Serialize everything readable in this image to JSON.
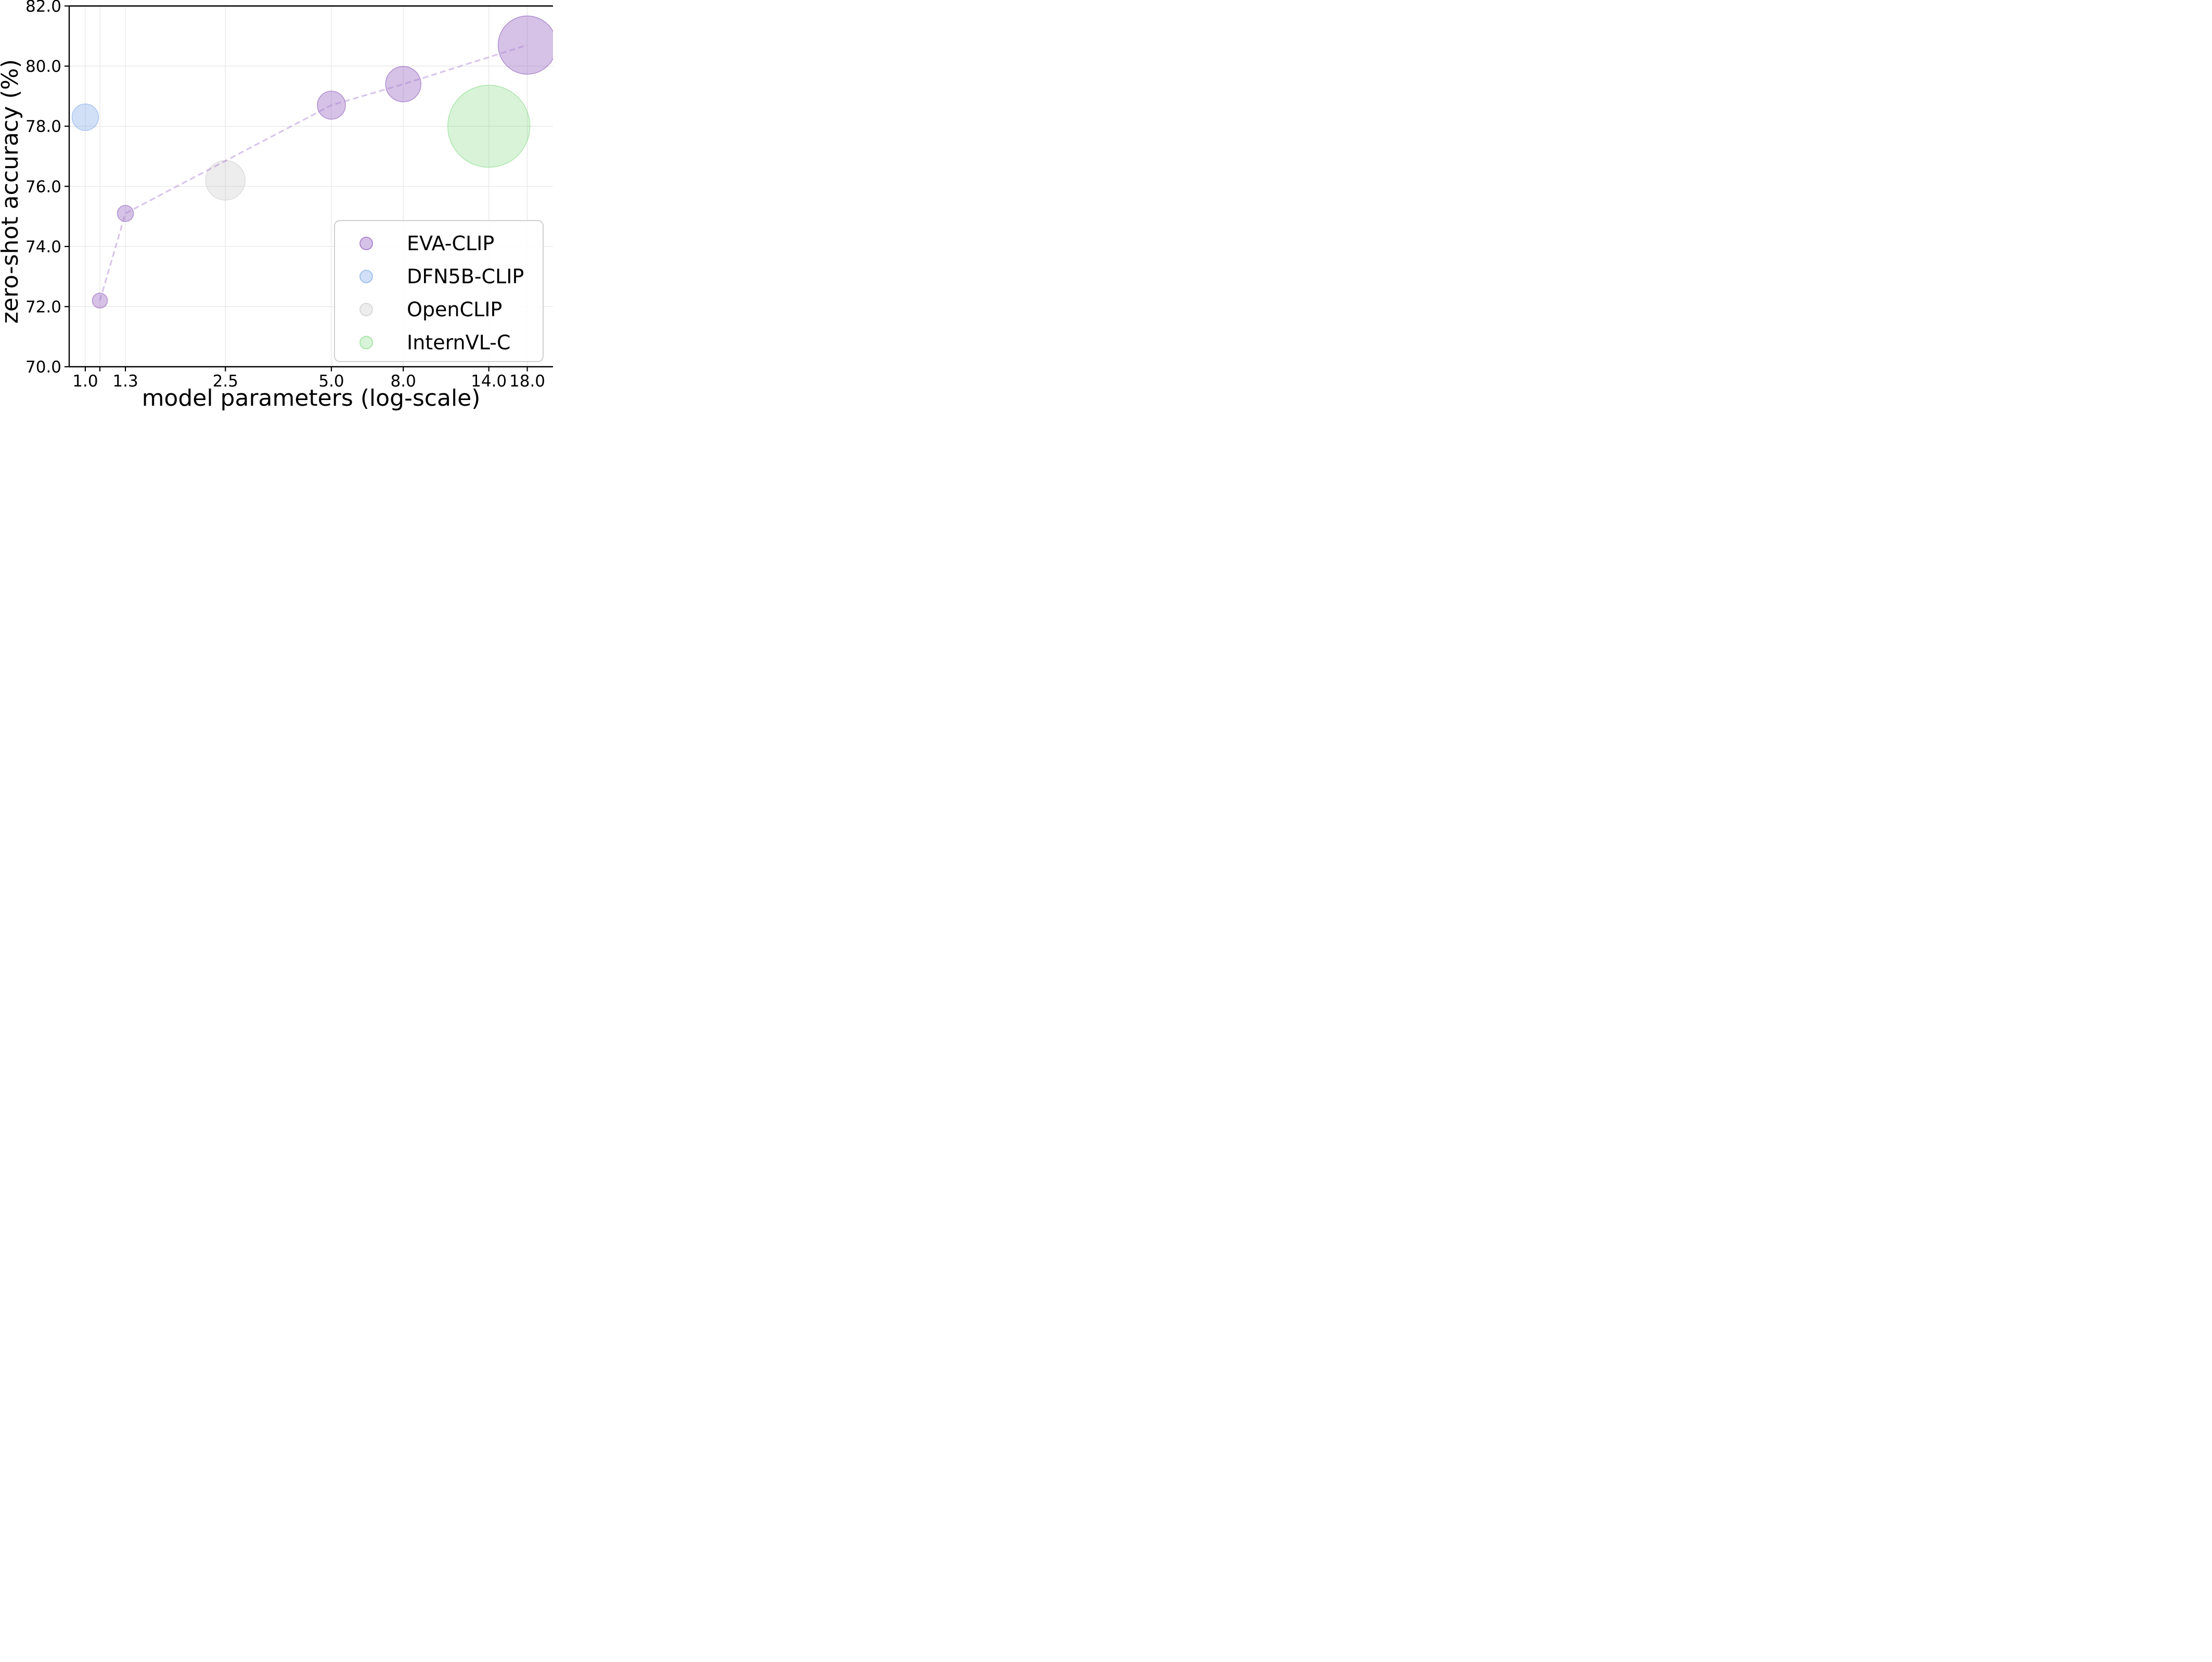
{
  "figure": {
    "kind": "matplotlib-style bubble scatter figure",
    "background": "#ffffff"
  },
  "chart_data": {
    "type": "scatter",
    "subtype": "bubble",
    "title": "",
    "xlabel": "model parameters (log-scale)",
    "ylabel": "zero-shot accuracy (%)",
    "x_scale": "log",
    "xlim": [
      0.9,
      21.3
    ],
    "ylim": [
      70.0,
      82.0
    ],
    "grid": true,
    "x_ticks": [
      {
        "v": 1.0,
        "label": "1.0"
      },
      {
        "v": 1.1,
        "label": ""
      },
      {
        "v": 1.3,
        "label": "1.3"
      },
      {
        "v": 2.5,
        "label": "2.5"
      },
      {
        "v": 5.0,
        "label": "5.0"
      },
      {
        "v": 8.0,
        "label": "8.0"
      },
      {
        "v": 14.0,
        "label": "14.0"
      },
      {
        "v": 18.0,
        "label": "18.0"
      }
    ],
    "y_ticks": [
      {
        "v": 82.0,
        "label": "82.0"
      },
      {
        "v": 80.0,
        "label": "80.0"
      },
      {
        "v": 78.0,
        "label": "78.0"
      },
      {
        "v": 76.0,
        "label": "76.0"
      },
      {
        "v": 74.0,
        "label": "74.0"
      },
      {
        "v": 72.0,
        "label": "72.0"
      },
      {
        "v": 70.0,
        "label": "70.0"
      }
    ],
    "series": [
      {
        "name": "EVA-CLIP",
        "color": "#9b6ec3",
        "fill_alpha": 0.42,
        "edge_alpha": 0.75,
        "trendline": true,
        "points": [
          {
            "x": 1.1,
            "y": 72.2,
            "r": 14.5
          },
          {
            "x": 1.3,
            "y": 75.1,
            "r": 15.5
          },
          {
            "x": 5.0,
            "y": 78.7,
            "r": 27
          },
          {
            "x": 8.0,
            "y": 79.4,
            "r": 34
          },
          {
            "x": 18.0,
            "y": 80.7,
            "r": 56
          }
        ]
      },
      {
        "name": "DFN5B-CLIP",
        "color": "#7aa5e8",
        "fill_alpha": 0.35,
        "edge_alpha": 0.6,
        "trendline": false,
        "points": [
          {
            "x": 1.0,
            "y": 78.3,
            "r": 25.5
          }
        ]
      },
      {
        "name": "OpenCLIP",
        "color": "#bdbdbd",
        "fill_alpha": 0.28,
        "edge_alpha": 0.5,
        "trendline": false,
        "points": [
          {
            "x": 2.5,
            "y": 76.2,
            "r": 38
          }
        ]
      },
      {
        "name": "InternVL-C",
        "color": "#7ed87e",
        "fill_alpha": 0.3,
        "edge_alpha": 0.6,
        "trendline": false,
        "points": [
          {
            "x": 14.0,
            "y": 78.0,
            "r": 79
          }
        ]
      }
    ],
    "trendline_style": {
      "color": "#a97fd1",
      "alpha": 0.45,
      "dash": [
        11,
        6.5
      ],
      "width": 3.2
    },
    "legend": {
      "position": "lower right",
      "entries": [
        "EVA-CLIP",
        "DFN5B-CLIP",
        "OpenCLIP",
        "InternVL-C"
      ]
    },
    "colors": {
      "grid": "#e7e7e7",
      "spine": "#000000",
      "legend_border": "#cfcfcf",
      "legend_bg": "rgba(255,255,255,0.85)"
    }
  }
}
